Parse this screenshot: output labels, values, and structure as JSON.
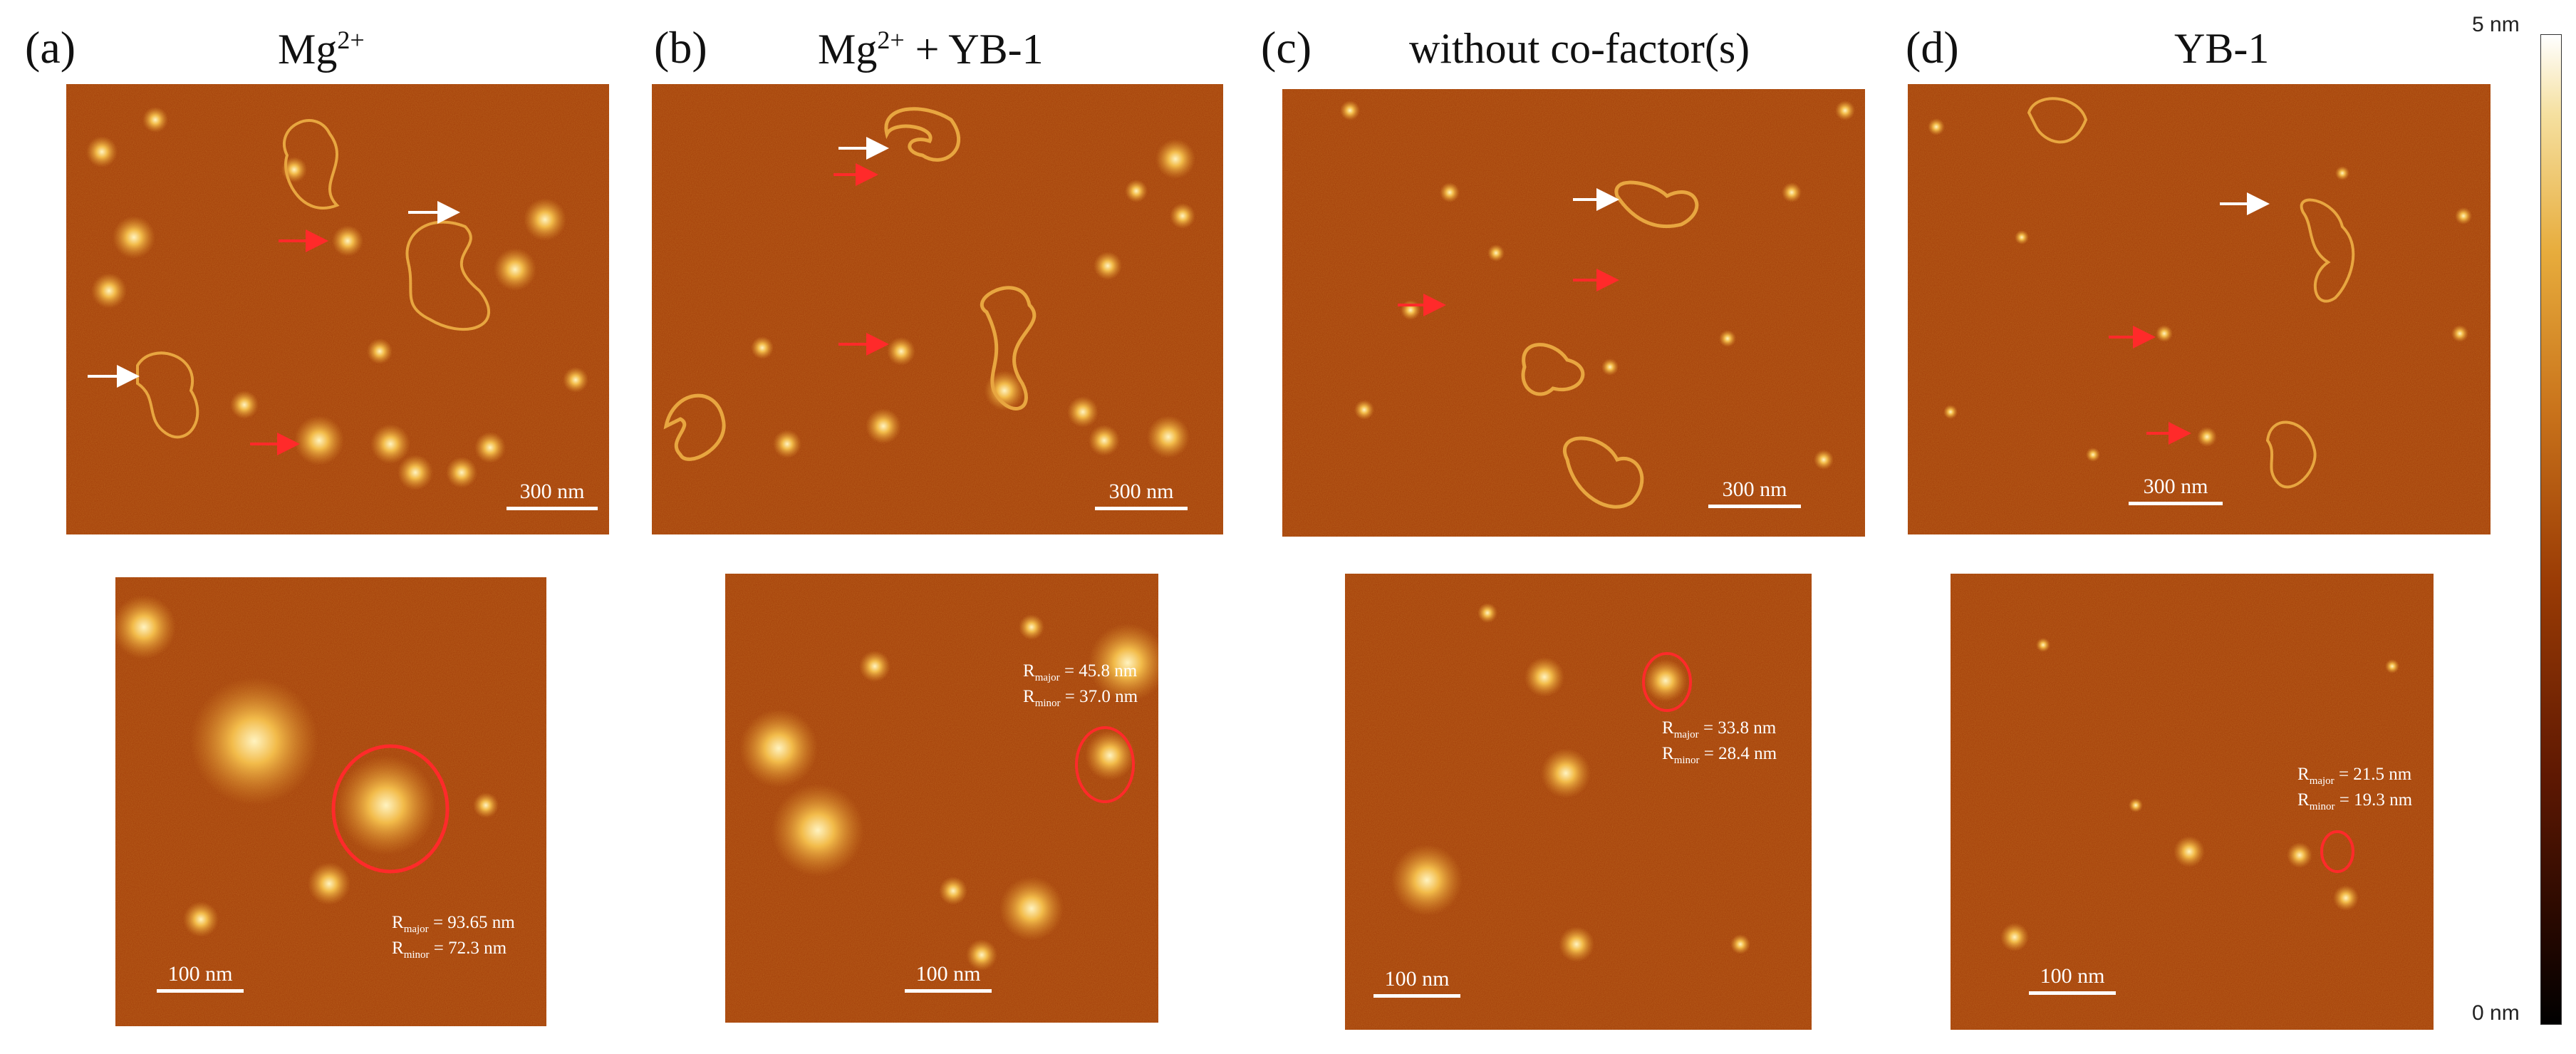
{
  "panels": [
    {
      "id": "a",
      "label": "(a)",
      "title_main": "Mg",
      "title_sup": "2+",
      "title_rest": "",
      "scale_top": "300 nm",
      "scale_bottom": "100 nm",
      "r_major": "= 93.65 nm",
      "r_minor": "= 72.3 nm"
    },
    {
      "id": "b",
      "label": "(b)",
      "title_main": "Mg",
      "title_sup": "2+",
      "title_rest": " + YB-1",
      "scale_top": "300 nm",
      "scale_bottom": "100 nm",
      "r_major": "= 45.8 nm",
      "r_minor": "= 37.0 nm"
    },
    {
      "id": "c",
      "label": "(c)",
      "title_main": "without co-factor(s)",
      "title_sup": "",
      "title_rest": "",
      "scale_top": "300 nm",
      "scale_bottom": "100 nm",
      "r_major": "= 33.8 nm",
      "r_minor": "= 28.4 nm"
    },
    {
      "id": "d",
      "label": "(d)",
      "title_main": "YB-1",
      "title_sup": "",
      "title_rest": "",
      "scale_top": "300 nm",
      "scale_bottom": "100 nm",
      "r_major": "= 21.5 nm",
      "r_minor": "= 19.3 nm"
    }
  ],
  "r_major_label": "R",
  "r_major_sub": "major",
  "r_minor_label": "R",
  "r_minor_sub": "minor",
  "colorbar": {
    "max": "5 nm",
    "min": "0 nm"
  },
  "colors": {
    "afm_bg": "#a23c08",
    "feature": "#f0b040",
    "arrow_white": "#ffffff",
    "arrow_red": "#ff2a2a",
    "ellipse": "#ff2a2a"
  }
}
